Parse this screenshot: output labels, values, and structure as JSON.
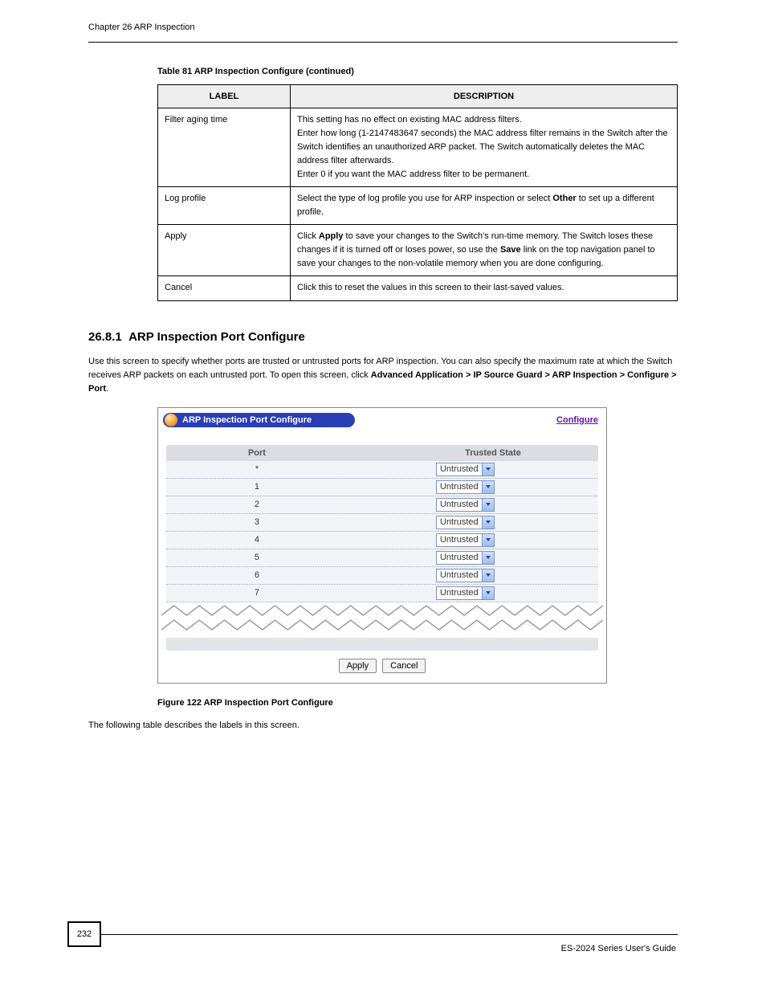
{
  "header": {
    "chapter": "Chapter 26 ARP Inspection",
    "line_color": "#000000"
  },
  "labelTable": {
    "caption": "Table 81   ARP Inspection Configure (continued)",
    "columns": [
      "LABEL",
      "DESCRIPTION"
    ],
    "rows": [
      {
        "label": "Filter aging time",
        "description": "This setting has no effect on existing MAC address filters.\nEnter how long (1-2147483647 seconds) the MAC address filter remains in the Switch after the Switch identifies an unauthorized ARP packet. The Switch automatically deletes the MAC address filter afterwards.\nEnter 0 if you want the MAC address filter to be permanent."
      },
      {
        "label": "Log profile",
        "description": "Select the type of log profile you use for ARP inspection or select Other to set up a different profile."
      },
      {
        "label": "Apply",
        "description": "Click Apply to save your changes to the Switch's run-time memory. The Switch loses these changes if it is turned off or loses power, so use the Save link on the top navigation panel to save your changes to the non-volatile memory when you are done configuring."
      },
      {
        "label": "Cancel",
        "description": "Click this to reset the values in this screen to their last-saved values."
      }
    ]
  },
  "section": {
    "number": "26.8.1",
    "title": "ARP Inspection Port Configure",
    "body_parts": [
      "Use this screen to specify whether ports are trusted or untrusted ports for ARP inspection. You can also specify the maximum rate at which the Switch receives ARP packets on each untrusted port. To open this screen, click ",
      "Advanced Application > IP Source Guard > ARP Inspection > Configure > Port",
      "."
    ]
  },
  "figure": {
    "pill_title": "ARP Inspection Port Configure",
    "configure_link": "Configure",
    "columns": {
      "port": "Port",
      "state": "Trusted State"
    },
    "rows": [
      {
        "port": "*",
        "state": "Untrusted"
      },
      {
        "port": "1",
        "state": "Untrusted"
      },
      {
        "port": "2",
        "state": "Untrusted"
      },
      {
        "port": "3",
        "state": "Untrusted"
      },
      {
        "port": "4",
        "state": "Untrusted"
      },
      {
        "port": "5",
        "state": "Untrusted"
      },
      {
        "port": "6",
        "state": "Untrusted"
      },
      {
        "port": "7",
        "state": "Untrusted"
      }
    ],
    "buttons": {
      "apply": "Apply",
      "cancel": "Cancel"
    },
    "zigzag_stroke": "#9a9aa6",
    "header_bg": "#dcdde2",
    "row_bg": "#f2f3f6"
  },
  "figureCaption": "Figure 122   ARP Inspection Port Configure",
  "finalParagraph": "The following table describes the labels in this screen.",
  "footer": {
    "pageNumber": "232",
    "guide": "ES-2024 Series User's Guide"
  }
}
